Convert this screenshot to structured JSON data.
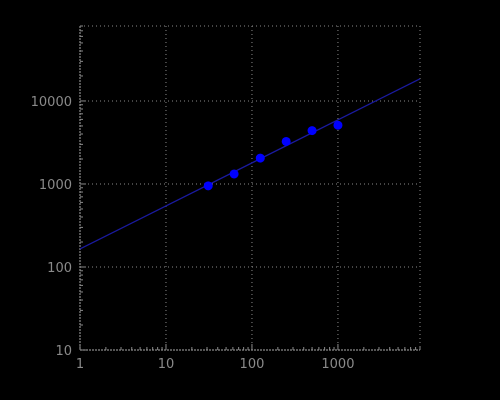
{
  "colors": {
    "background": "#000000",
    "axis": "#8a8a8a",
    "grid": "#8a8a8a",
    "tick_label": "#8a8a8a",
    "points": "#0000ff",
    "fit_line": "#1a1aa0"
  },
  "chart_data": {
    "type": "scatter",
    "title": "",
    "xlabel": "",
    "ylabel": "",
    "x_scale": "log",
    "y_scale": "log",
    "xlim": [
      1,
      9000
    ],
    "ylim": [
      10,
      80000
    ],
    "grid": true,
    "legend": "none",
    "x_ticks": [
      {
        "value": 1,
        "label": "1"
      },
      {
        "value": 10,
        "label": "10"
      },
      {
        "value": 100,
        "label": "100"
      },
      {
        "value": 1000,
        "label": "1000"
      }
    ],
    "y_ticks": [
      {
        "value": 10,
        "label": "10"
      },
      {
        "value": 100,
        "label": "100"
      },
      {
        "value": 1000,
        "label": "1000"
      },
      {
        "value": 10000,
        "label": "10000"
      }
    ],
    "series": [
      {
        "type": "scatter",
        "points": [
          {
            "x": 31,
            "y": 950
          },
          {
            "x": 62,
            "y": 1320
          },
          {
            "x": 125,
            "y": 2050
          },
          {
            "x": 250,
            "y": 3250
          },
          {
            "x": 500,
            "y": 4400
          },
          {
            "x": 1000,
            "y": 5100
          }
        ]
      },
      {
        "type": "line",
        "points": [
          {
            "x": 1,
            "y": 165
          },
          {
            "x": 9000,
            "y": 18500
          }
        ]
      }
    ]
  }
}
